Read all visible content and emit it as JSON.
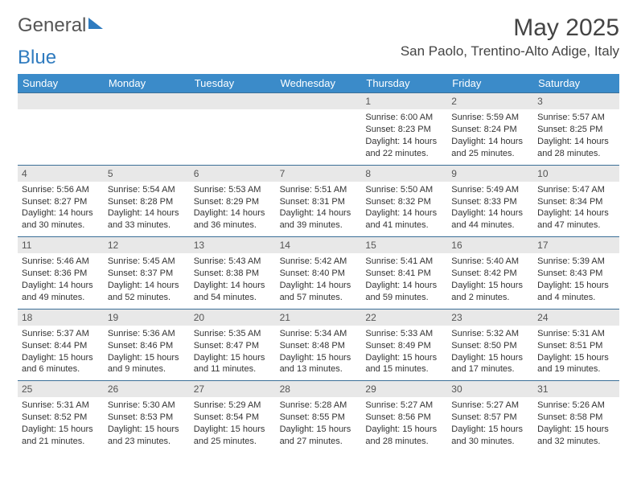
{
  "brand": {
    "part1": "General",
    "part2": "Blue"
  },
  "title": "May 2025",
  "location": "San Paolo, Trentino-Alto Adige, Italy",
  "colors": {
    "header_bg": "#3b8bc9",
    "header_text": "#ffffff",
    "week_border": "#3b6f97",
    "daynum_bg": "#e8e8e8",
    "text": "#333333",
    "brand_blue": "#2f7bbf"
  },
  "typography": {
    "title_fontsize": 30,
    "location_fontsize": 17,
    "header_cell_fontsize": 13,
    "daynum_fontsize": 12,
    "body_fontsize": 11
  },
  "day_headers": [
    "Sunday",
    "Monday",
    "Tuesday",
    "Wednesday",
    "Thursday",
    "Friday",
    "Saturday"
  ],
  "weeks": [
    [
      {
        "n": ""
      },
      {
        "n": ""
      },
      {
        "n": ""
      },
      {
        "n": ""
      },
      {
        "n": "1",
        "sr": "Sunrise: 6:00 AM",
        "ss": "Sunset: 8:23 PM",
        "d1": "Daylight: 14 hours",
        "d2": "and 22 minutes."
      },
      {
        "n": "2",
        "sr": "Sunrise: 5:59 AM",
        "ss": "Sunset: 8:24 PM",
        "d1": "Daylight: 14 hours",
        "d2": "and 25 minutes."
      },
      {
        "n": "3",
        "sr": "Sunrise: 5:57 AM",
        "ss": "Sunset: 8:25 PM",
        "d1": "Daylight: 14 hours",
        "d2": "and 28 minutes."
      }
    ],
    [
      {
        "n": "4",
        "sr": "Sunrise: 5:56 AM",
        "ss": "Sunset: 8:27 PM",
        "d1": "Daylight: 14 hours",
        "d2": "and 30 minutes."
      },
      {
        "n": "5",
        "sr": "Sunrise: 5:54 AM",
        "ss": "Sunset: 8:28 PM",
        "d1": "Daylight: 14 hours",
        "d2": "and 33 minutes."
      },
      {
        "n": "6",
        "sr": "Sunrise: 5:53 AM",
        "ss": "Sunset: 8:29 PM",
        "d1": "Daylight: 14 hours",
        "d2": "and 36 minutes."
      },
      {
        "n": "7",
        "sr": "Sunrise: 5:51 AM",
        "ss": "Sunset: 8:31 PM",
        "d1": "Daylight: 14 hours",
        "d2": "and 39 minutes."
      },
      {
        "n": "8",
        "sr": "Sunrise: 5:50 AM",
        "ss": "Sunset: 8:32 PM",
        "d1": "Daylight: 14 hours",
        "d2": "and 41 minutes."
      },
      {
        "n": "9",
        "sr": "Sunrise: 5:49 AM",
        "ss": "Sunset: 8:33 PM",
        "d1": "Daylight: 14 hours",
        "d2": "and 44 minutes."
      },
      {
        "n": "10",
        "sr": "Sunrise: 5:47 AM",
        "ss": "Sunset: 8:34 PM",
        "d1": "Daylight: 14 hours",
        "d2": "and 47 minutes."
      }
    ],
    [
      {
        "n": "11",
        "sr": "Sunrise: 5:46 AM",
        "ss": "Sunset: 8:36 PM",
        "d1": "Daylight: 14 hours",
        "d2": "and 49 minutes."
      },
      {
        "n": "12",
        "sr": "Sunrise: 5:45 AM",
        "ss": "Sunset: 8:37 PM",
        "d1": "Daylight: 14 hours",
        "d2": "and 52 minutes."
      },
      {
        "n": "13",
        "sr": "Sunrise: 5:43 AM",
        "ss": "Sunset: 8:38 PM",
        "d1": "Daylight: 14 hours",
        "d2": "and 54 minutes."
      },
      {
        "n": "14",
        "sr": "Sunrise: 5:42 AM",
        "ss": "Sunset: 8:40 PM",
        "d1": "Daylight: 14 hours",
        "d2": "and 57 minutes."
      },
      {
        "n": "15",
        "sr": "Sunrise: 5:41 AM",
        "ss": "Sunset: 8:41 PM",
        "d1": "Daylight: 14 hours",
        "d2": "and 59 minutes."
      },
      {
        "n": "16",
        "sr": "Sunrise: 5:40 AM",
        "ss": "Sunset: 8:42 PM",
        "d1": "Daylight: 15 hours",
        "d2": "and 2 minutes."
      },
      {
        "n": "17",
        "sr": "Sunrise: 5:39 AM",
        "ss": "Sunset: 8:43 PM",
        "d1": "Daylight: 15 hours",
        "d2": "and 4 minutes."
      }
    ],
    [
      {
        "n": "18",
        "sr": "Sunrise: 5:37 AM",
        "ss": "Sunset: 8:44 PM",
        "d1": "Daylight: 15 hours",
        "d2": "and 6 minutes."
      },
      {
        "n": "19",
        "sr": "Sunrise: 5:36 AM",
        "ss": "Sunset: 8:46 PM",
        "d1": "Daylight: 15 hours",
        "d2": "and 9 minutes."
      },
      {
        "n": "20",
        "sr": "Sunrise: 5:35 AM",
        "ss": "Sunset: 8:47 PM",
        "d1": "Daylight: 15 hours",
        "d2": "and 11 minutes."
      },
      {
        "n": "21",
        "sr": "Sunrise: 5:34 AM",
        "ss": "Sunset: 8:48 PM",
        "d1": "Daylight: 15 hours",
        "d2": "and 13 minutes."
      },
      {
        "n": "22",
        "sr": "Sunrise: 5:33 AM",
        "ss": "Sunset: 8:49 PM",
        "d1": "Daylight: 15 hours",
        "d2": "and 15 minutes."
      },
      {
        "n": "23",
        "sr": "Sunrise: 5:32 AM",
        "ss": "Sunset: 8:50 PM",
        "d1": "Daylight: 15 hours",
        "d2": "and 17 minutes."
      },
      {
        "n": "24",
        "sr": "Sunrise: 5:31 AM",
        "ss": "Sunset: 8:51 PM",
        "d1": "Daylight: 15 hours",
        "d2": "and 19 minutes."
      }
    ],
    [
      {
        "n": "25",
        "sr": "Sunrise: 5:31 AM",
        "ss": "Sunset: 8:52 PM",
        "d1": "Daylight: 15 hours",
        "d2": "and 21 minutes."
      },
      {
        "n": "26",
        "sr": "Sunrise: 5:30 AM",
        "ss": "Sunset: 8:53 PM",
        "d1": "Daylight: 15 hours",
        "d2": "and 23 minutes."
      },
      {
        "n": "27",
        "sr": "Sunrise: 5:29 AM",
        "ss": "Sunset: 8:54 PM",
        "d1": "Daylight: 15 hours",
        "d2": "and 25 minutes."
      },
      {
        "n": "28",
        "sr": "Sunrise: 5:28 AM",
        "ss": "Sunset: 8:55 PM",
        "d1": "Daylight: 15 hours",
        "d2": "and 27 minutes."
      },
      {
        "n": "29",
        "sr": "Sunrise: 5:27 AM",
        "ss": "Sunset: 8:56 PM",
        "d1": "Daylight: 15 hours",
        "d2": "and 28 minutes."
      },
      {
        "n": "30",
        "sr": "Sunrise: 5:27 AM",
        "ss": "Sunset: 8:57 PM",
        "d1": "Daylight: 15 hours",
        "d2": "and 30 minutes."
      },
      {
        "n": "31",
        "sr": "Sunrise: 5:26 AM",
        "ss": "Sunset: 8:58 PM",
        "d1": "Daylight: 15 hours",
        "d2": "and 32 minutes."
      }
    ]
  ]
}
